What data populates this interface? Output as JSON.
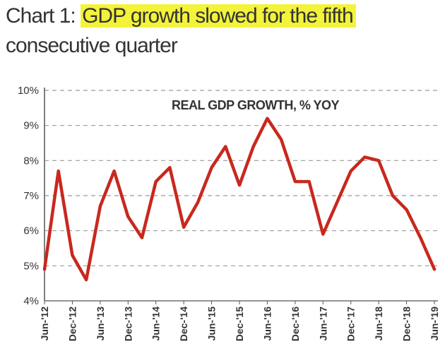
{
  "title": {
    "prefix": "Chart 1: ",
    "highlight": "GDP growth slowed for the fifth",
    "line2": "consecutive quarter"
  },
  "colors": {
    "line": "#c8281e",
    "highlight": "#f3f33a",
    "grid": "#9a9a9a",
    "text": "#333333"
  },
  "chart_data": {
    "type": "line",
    "annotation": "REAL GDP GROWTH, % YOY",
    "ylim": [
      4,
      10
    ],
    "y_ticks": [
      {
        "value": 4,
        "label": "4%"
      },
      {
        "value": 5,
        "label": "5%"
      },
      {
        "value": 6,
        "label": "6%"
      },
      {
        "value": 7,
        "label": "7%"
      },
      {
        "value": 8,
        "label": "8%"
      },
      {
        "value": 9,
        "label": "9%"
      },
      {
        "value": 10,
        "label": "10%"
      }
    ],
    "grid": true,
    "x": [
      "Jun-'12",
      "Sep-'12",
      "Dec-'12",
      "Mar-'13",
      "Jun-'13",
      "Sep-'13",
      "Dec-'13",
      "Mar-'14",
      "Jun-'14",
      "Sep-'14",
      "Dec-'14",
      "Mar-'15",
      "Jun-'15",
      "Sep-'15",
      "Dec-'15",
      "Mar-'16",
      "Jun-'16",
      "Sep-'16",
      "Dec-'16",
      "Mar-'17",
      "Jun-'17",
      "Sep-'17",
      "Dec-'17",
      "Mar-'18",
      "Jun-'18",
      "Sep-'18",
      "Dec-'18",
      "Mar-'19",
      "Jun-'19"
    ],
    "x_tick_labels": [
      "Jun-'12",
      "Dec-'12",
      "Jun-'13",
      "Dec-'13",
      "Jun-'14",
      "Dec-'14",
      "Jun-'15",
      "Dec-'15",
      "Jun-'16",
      "Dec-'16",
      "Jun-'17",
      "Dec-'17",
      "Jun-'18",
      "Dec-'18",
      "Jun-'19"
    ],
    "series": [
      {
        "values": [
          4.9,
          7.7,
          5.3,
          4.6,
          6.7,
          7.7,
          6.4,
          5.8,
          7.4,
          7.8,
          6.1,
          6.8,
          7.8,
          8.4,
          7.3,
          8.4,
          9.2,
          8.6,
          7.4,
          7.4,
          5.9,
          6.8,
          7.7,
          8.1,
          8.0,
          7.0,
          6.6,
          5.8,
          4.9
        ]
      }
    ]
  }
}
